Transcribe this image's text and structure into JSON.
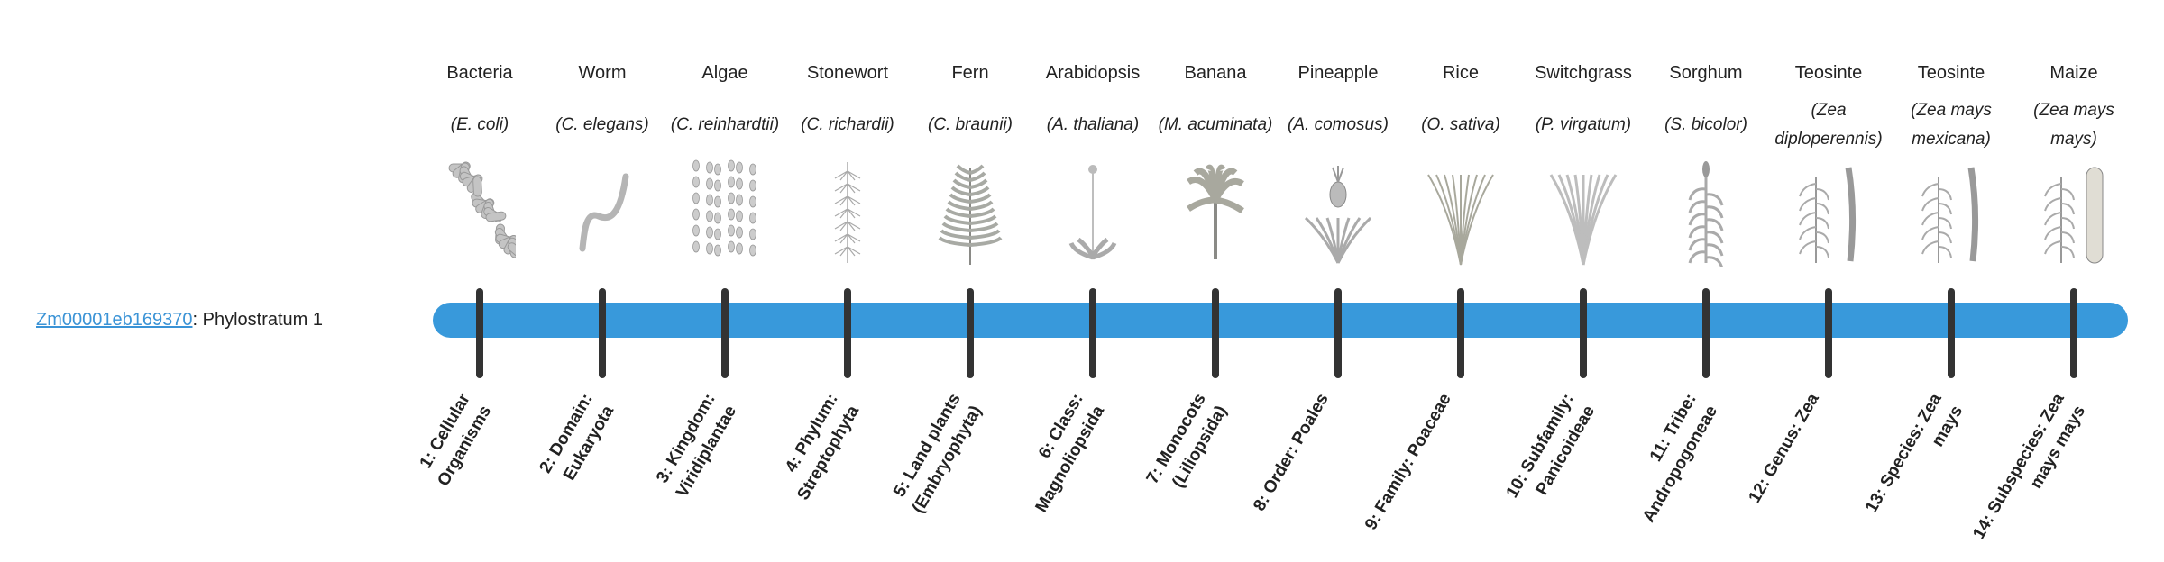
{
  "gene": {
    "id": "Zm00001eb169370",
    "separator": ": ",
    "stratum": "Phylostratum 1"
  },
  "colors": {
    "bar": "#3899db",
    "link": "#3a93d6",
    "tick": "#333333"
  },
  "strata": [
    {
      "common": "Bacteria",
      "sci": "(E. coli)",
      "rank": "1: Cellular Organisms",
      "icon": "bacteria-icon"
    },
    {
      "common": "Worm",
      "sci": "(C. elegans)",
      "rank": "2: Domain: Eukaryota",
      "icon": "worm-icon"
    },
    {
      "common": "Algae",
      "sci": "(C. reinhardtii)",
      "rank": "3: Kingdom: Viridiplantae",
      "icon": "algae-icon"
    },
    {
      "common": "Stonewort",
      "sci": "(C. richardii)",
      "rank": "4: Phylum: Streptophyta",
      "icon": "stonewort-icon"
    },
    {
      "common": "Fern",
      "sci": "(C. braunii)",
      "rank": "5: Land plants (Embryophyta)",
      "icon": "fern-icon"
    },
    {
      "common": "Arabidopsis",
      "sci": "(A. thaliana)",
      "rank": "6: Class: Magnoliopsida",
      "icon": "arabidopsis-icon"
    },
    {
      "common": "Banana",
      "sci": "(M. acuminata)",
      "rank": "7: Monocots (Liliopsida)",
      "icon": "banana-icon"
    },
    {
      "common": "Pineapple",
      "sci": "(A. comosus)",
      "rank": "8: Order: Poales",
      "icon": "pineapple-icon"
    },
    {
      "common": "Rice",
      "sci": "(O. sativa)",
      "rank": "9: Family: Poaceae",
      "icon": "rice-icon"
    },
    {
      "common": "Switchgrass",
      "sci": "(P. virgatum)",
      "rank": "10: Subfamily: Panicoideae",
      "icon": "switchgrass-icon"
    },
    {
      "common": "Sorghum",
      "sci": "(S. bicolor)",
      "rank": "11: Tribe: Andropogoneae",
      "icon": "sorghum-icon"
    },
    {
      "common": "Teosinte",
      "sci": "(Zea diploperennis)",
      "rank": "12: Genus: Zea",
      "icon": "teosinte-icon"
    },
    {
      "common": "Teosinte",
      "sci": "(Zea mays mexicana)",
      "rank": "13: Species: Zea mays",
      "icon": "teosinte-icon"
    },
    {
      "common": "Maize",
      "sci": "(Zea mays mays)",
      "rank": "14: Subspecies: Zea mays mays",
      "icon": "maize-icon"
    }
  ]
}
